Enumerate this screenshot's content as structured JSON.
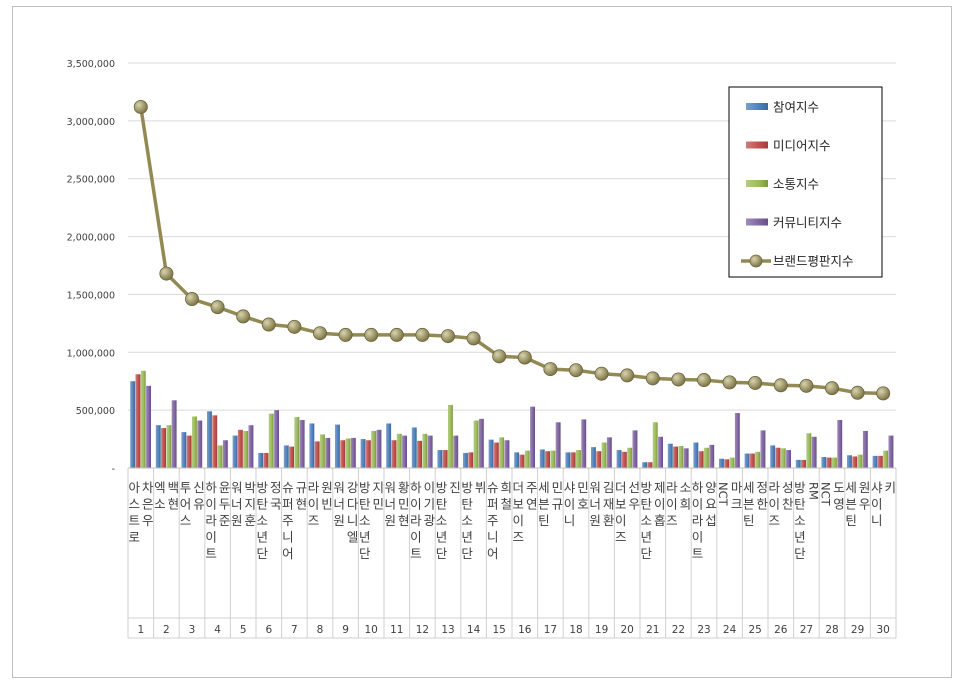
{
  "chart_data": {
    "type": "bar",
    "title": "",
    "xlabel": "",
    "ylabel": "",
    "ylim": [
      0,
      3500000
    ],
    "yticks": [
      0,
      500000,
      1000000,
      1500000,
      2000000,
      2500000,
      3000000,
      3500000
    ],
    "ytick_labels": [
      "-",
      "500,000",
      "1,000,000",
      "1,500,000",
      "2,000,000",
      "2,500,000",
      "3,000,000",
      "3,500,000"
    ],
    "grid": true,
    "legend_position": "top-right",
    "ranks": [
      "1",
      "2",
      "3",
      "4",
      "5",
      "6",
      "7",
      "8",
      "9",
      "10",
      "11",
      "12",
      "13",
      "14",
      "15",
      "16",
      "17",
      "18",
      "19",
      "20",
      "21",
      "22",
      "23",
      "24",
      "25",
      "26",
      "27",
      "28",
      "29",
      "30"
    ],
    "categories": [
      "아스트로 차은우",
      "엑소 백현",
      "투어스 신유",
      "하이라이트 윤두준",
      "워너원 박지훈",
      "방탄소년단 정국",
      "슈퍼주니어 규현",
      "라이즈 원빈",
      "워너원 강다니엘",
      "방탄소년단 지민",
      "워너원 황민현",
      "하이라이트 이기광",
      "방탄소년단 진",
      "방탄소년단 뷔",
      "슈퍼주니어 희철",
      "더보이즈 주연",
      "세븐틴 민규",
      "샤이니 민호",
      "워너원 김재환",
      "더보이즈 선우",
      "방탄소년단 제이홉",
      "라이즈 소희",
      "하이라이트 양요섭",
      "NCT 마크",
      "세븐틴 정한",
      "라이즈 성찬",
      "방탄소년단 RM",
      "NCT 도영",
      "세븐틴 원우",
      "샤이니 키"
    ],
    "series": [
      {
        "name": "참여지수",
        "kind": "bar",
        "color": "#4f81bd",
        "values": [
          750000,
          370000,
          310000,
          490000,
          280000,
          130000,
          195000,
          385000,
          375000,
          250000,
          385000,
          350000,
          155000,
          130000,
          245000,
          135000,
          160000,
          135000,
          180000,
          155000,
          50000,
          210000,
          220000,
          80000,
          125000,
          195000,
          70000,
          95000,
          110000,
          105000
        ]
      },
      {
        "name": "미디어지수",
        "kind": "bar",
        "color": "#c0504d",
        "values": [
          810000,
          345000,
          280000,
          455000,
          330000,
          130000,
          185000,
          230000,
          240000,
          240000,
          240000,
          235000,
          155000,
          135000,
          220000,
          115000,
          145000,
          135000,
          145000,
          140000,
          50000,
          185000,
          145000,
          75000,
          125000,
          175000,
          70000,
          90000,
          100000,
          105000
        ]
      },
      {
        "name": "소통지수",
        "kind": "bar",
        "color": "#9bbb59",
        "values": [
          840000,
          370000,
          445000,
          195000,
          320000,
          470000,
          440000,
          290000,
          255000,
          320000,
          295000,
          295000,
          545000,
          410000,
          265000,
          150000,
          150000,
          155000,
          220000,
          175000,
          395000,
          190000,
          175000,
          90000,
          140000,
          170000,
          300000,
          90000,
          115000,
          150000
        ]
      },
      {
        "name": "커뮤니티지수",
        "kind": "bar",
        "color": "#8064a2",
        "values": [
          710000,
          585000,
          410000,
          240000,
          370000,
          500000,
          415000,
          260000,
          260000,
          330000,
          280000,
          280000,
          280000,
          425000,
          240000,
          530000,
          395000,
          420000,
          265000,
          325000,
          270000,
          170000,
          200000,
          475000,
          325000,
          155000,
          270000,
          415000,
          320000,
          280000
        ]
      },
      {
        "name": "브랜드평판지수",
        "kind": "line",
        "color": "#938953",
        "values": [
          3120000,
          1680000,
          1460000,
          1390000,
          1310000,
          1240000,
          1220000,
          1165000,
          1150000,
          1150000,
          1150000,
          1150000,
          1140000,
          1120000,
          965000,
          955000,
          855000,
          845000,
          815000,
          800000,
          775000,
          765000,
          760000,
          740000,
          735000,
          715000,
          710000,
          690000,
          650000,
          645000
        ]
      }
    ]
  }
}
